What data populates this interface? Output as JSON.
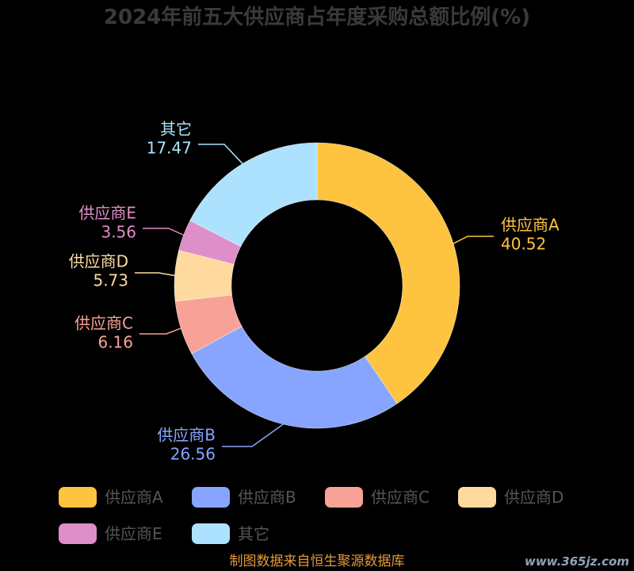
{
  "chart_data": {
    "type": "pie",
    "donut": true,
    "title": "2024年前五大供应商占年度采购总额比例(%)",
    "categories": [
      "供应商A",
      "供应商B",
      "供应商C",
      "供应商D",
      "供应商E",
      "其它"
    ],
    "values": [
      40.52,
      26.56,
      6.16,
      5.73,
      3.56,
      17.47
    ],
    "colors": [
      "#FFC43F",
      "#87A5FF",
      "#F8A297",
      "#FFDA9E",
      "#DE8EC9",
      "#ADE2FF"
    ],
    "legend": "bottom"
  },
  "footer": {
    "source": "制图数据来自恒生聚源数据库"
  },
  "watermark": "www.365jz.com",
  "colors": {
    "background": "#000000",
    "title": "#3a3a3a",
    "legend_text": "#555555",
    "source": "#E39A3B"
  }
}
